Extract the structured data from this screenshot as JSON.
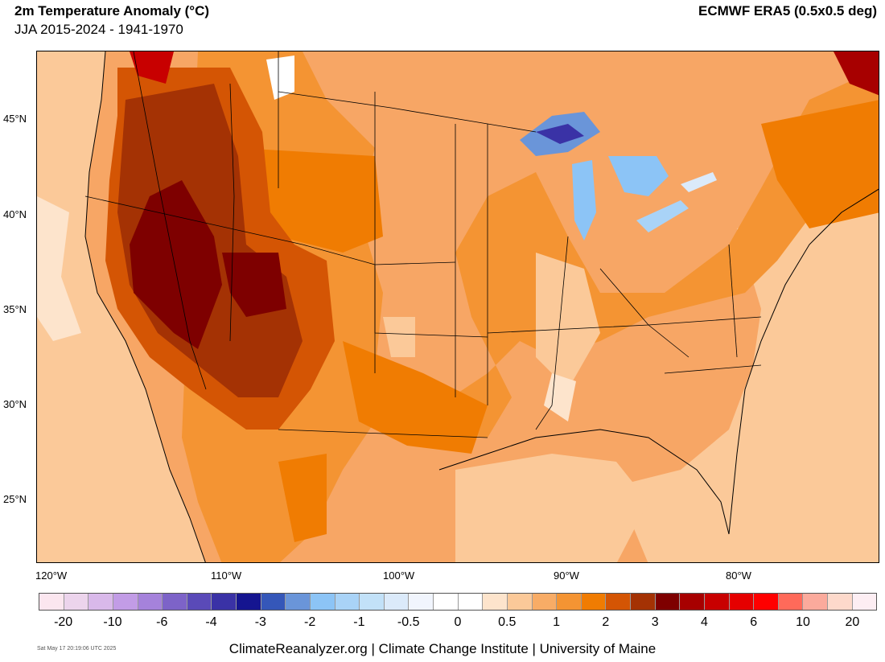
{
  "header": {
    "title": "2m Temperature Anomaly (°C)",
    "subtitle": "JJA 2015-2024 - 1941-1970",
    "source": "ECMWF ERA5 (0.5x0.5 deg)"
  },
  "map": {
    "region": "contiguous-united-states",
    "lat_labels": [
      "45°N",
      "40°N",
      "35°N",
      "30°N",
      "25°N"
    ],
    "lon_labels": [
      "120°W",
      "110°W",
      "100°W",
      "90°W",
      "80°W"
    ],
    "colors": {
      "background": "#f7a665",
      "hot_core": "#8b0000",
      "warm": "#c9460a",
      "mid": "#ef8525",
      "light": "#fbc99a",
      "cool_lakes": "#4a7bd0",
      "deep_cool": "#2c2f9a"
    }
  },
  "colorbar": {
    "colors": [
      "#fbe6ef",
      "#ecd4ec",
      "#d9b9ea",
      "#c29ce6",
      "#a582db",
      "#7d63c8",
      "#5a4ab8",
      "#3a32a6",
      "#151590",
      "#3557b9",
      "#6a95d9",
      "#8cc4f6",
      "#a9d3f7",
      "#c2e1f8",
      "#dbeafa",
      "#f1f5fd",
      "#ffffff",
      "#ffffff",
      "#fde4cc",
      "#fbc999",
      "#f8ac66",
      "#f49433",
      "#f07c02",
      "#d45504",
      "#a43204",
      "#7e0000",
      "#a70000",
      "#c80000",
      "#e50000",
      "#ff0000",
      "#ff6a5a",
      "#fbaa9c",
      "#fdd9cb",
      "#fdeef3"
    ],
    "tick_labels": [
      "-20",
      "-10",
      "-6",
      "-4",
      "-3",
      "-2",
      "-1",
      "-0.5",
      "0",
      "0.5",
      "1",
      "2",
      "3",
      "4",
      "6",
      "10",
      "20"
    ]
  },
  "footer": {
    "timestamp": "Sat May 17 20:19:06 UTC 2025",
    "credit": "ClimateReanalyzer.org | Climate Change Institute | University of Maine"
  }
}
